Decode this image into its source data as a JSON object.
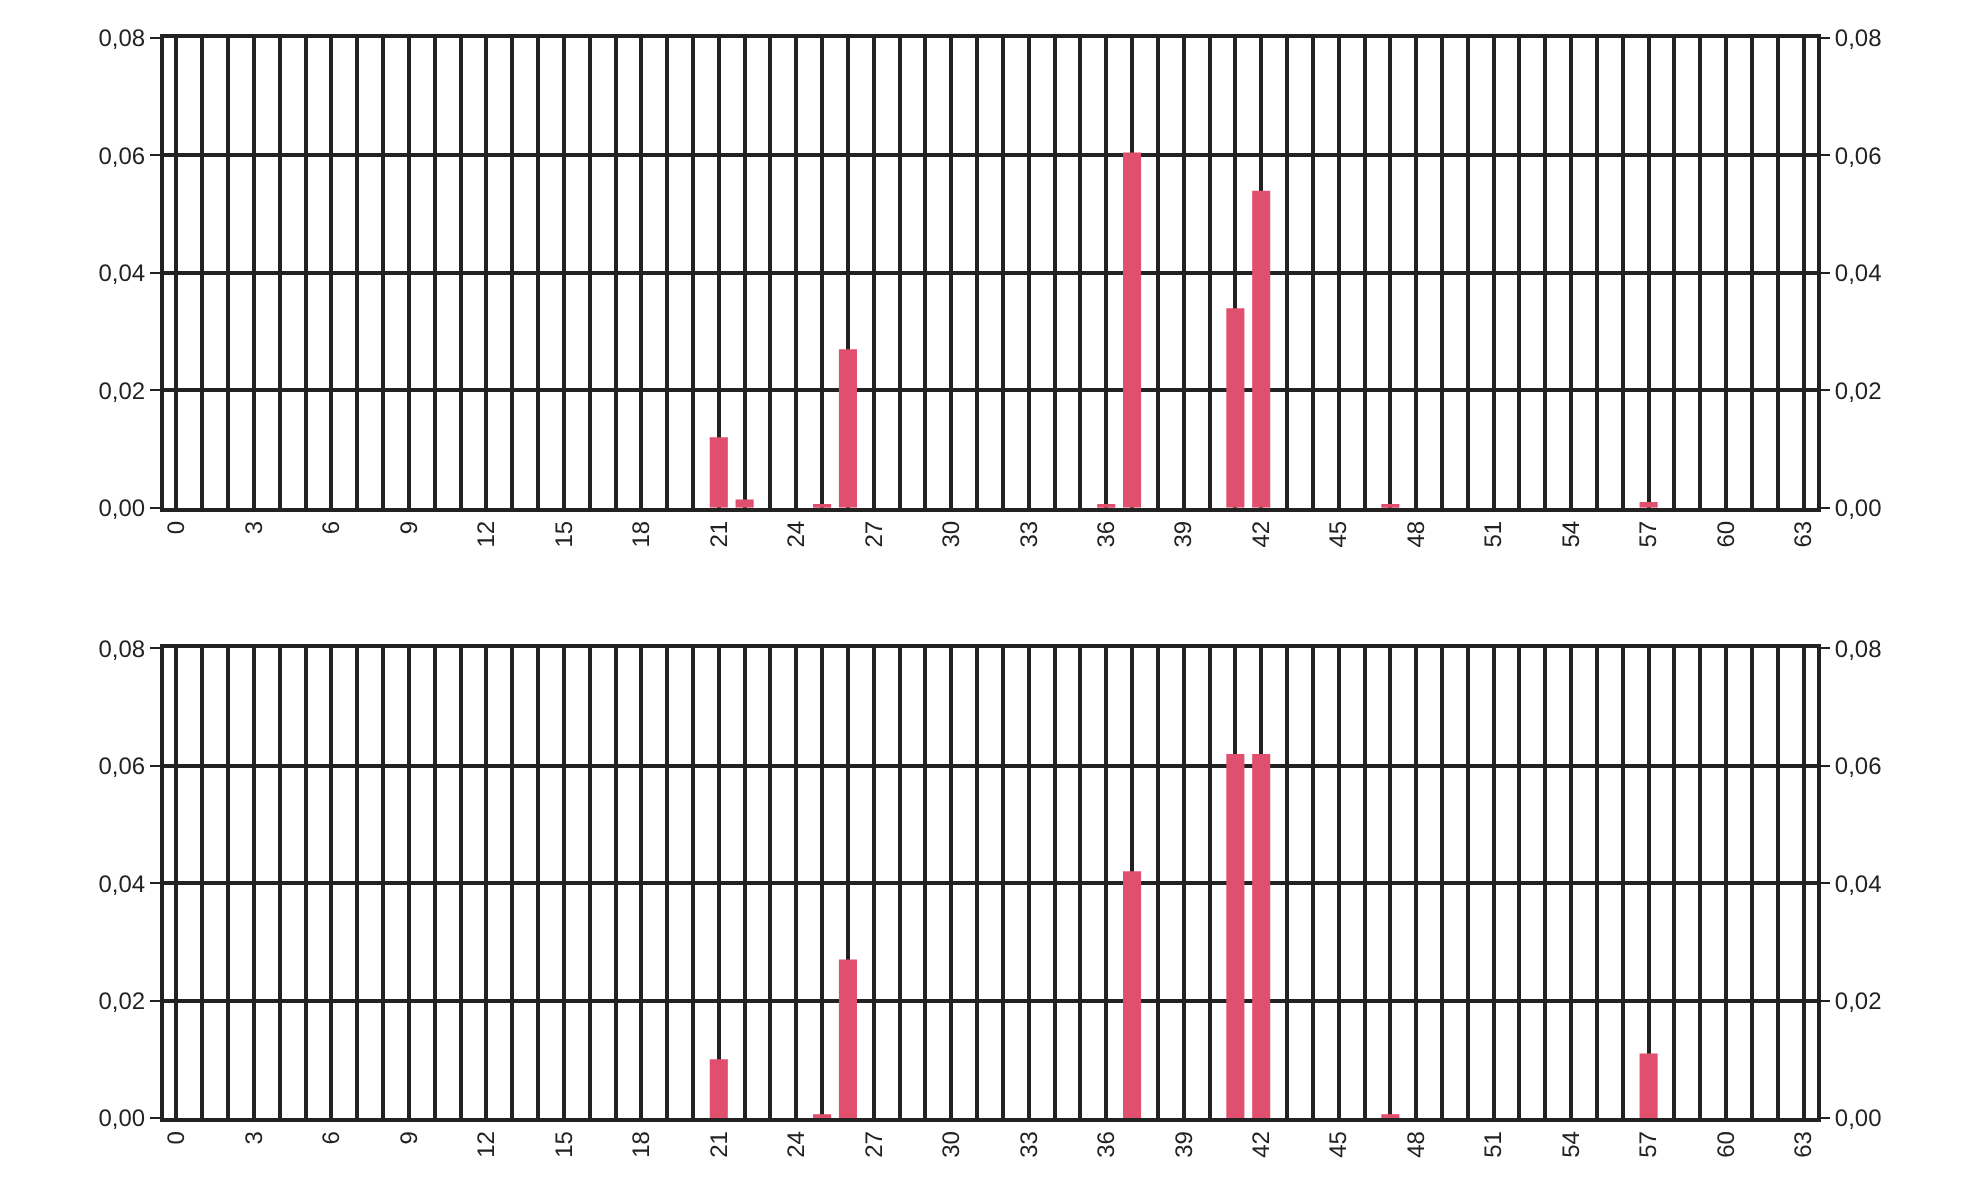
{
  "chart_data": [
    {
      "type": "bar",
      "categories": [
        "0",
        null,
        null,
        "3",
        null,
        null,
        "6",
        null,
        null,
        "9",
        null,
        null,
        "12",
        null,
        null,
        "15",
        null,
        null,
        "18",
        null,
        null,
        "21",
        null,
        null,
        "24",
        null,
        null,
        "27",
        null,
        null,
        "30",
        null,
        null,
        "33",
        null,
        null,
        "36",
        null,
        null,
        "39",
        null,
        null,
        "42",
        null,
        null,
        "45",
        null,
        null,
        "48",
        null,
        null,
        "51",
        null,
        null,
        "54",
        null,
        null,
        "57",
        null,
        null,
        "60",
        null,
        null,
        "63"
      ],
      "series": [
        {
          "color": "#e0506e",
          "values": [
            0,
            0,
            0,
            0,
            0,
            0,
            0,
            0,
            0,
            0,
            0,
            0,
            0,
            0,
            0,
            0,
            0,
            0,
            0,
            0,
            0,
            0.012,
            0.0014,
            0,
            0,
            0.0005,
            0.027,
            0,
            0,
            0,
            0,
            0,
            0,
            0,
            0,
            0,
            0.0005,
            0.0605,
            0,
            0,
            0,
            0.034,
            0.054,
            0,
            0,
            0,
            0,
            0.0005,
            0,
            0,
            0,
            0,
            0,
            0,
            0,
            0,
            0,
            0.001,
            0,
            0,
            0,
            0,
            0,
            0
          ]
        }
      ],
      "ylim": [
        0,
        0.08
      ],
      "yticks": [
        {
          "value": 0,
          "label": "0,00"
        },
        {
          "value": 0.02,
          "label": "0,02"
        },
        {
          "value": 0.04,
          "label": "0,04"
        },
        {
          "value": 0.06,
          "label": "0,06"
        },
        {
          "value": 0.08,
          "label": "0,08"
        }
      ],
      "y2lim": [
        0,
        0.08
      ],
      "y2ticks": [
        {
          "value": 0,
          "label": "0,00"
        },
        {
          "value": 0.02,
          "label": "0,02"
        },
        {
          "value": 0.04,
          "label": "0,04"
        },
        {
          "value": 0.06,
          "label": "0,06"
        },
        {
          "value": 0.08,
          "label": "0,08"
        }
      ],
      "grid": true
    },
    {
      "type": "bar",
      "categories": [
        "0",
        null,
        null,
        "3",
        null,
        null,
        "6",
        null,
        null,
        "9",
        null,
        null,
        "12",
        null,
        null,
        "15",
        null,
        null,
        "18",
        null,
        null,
        "21",
        null,
        null,
        "24",
        null,
        null,
        "27",
        null,
        null,
        "30",
        null,
        null,
        "33",
        null,
        null,
        "36",
        null,
        null,
        "39",
        null,
        null,
        "42",
        null,
        null,
        "45",
        null,
        null,
        "48",
        null,
        null,
        "51",
        null,
        null,
        "54",
        null,
        null,
        "57",
        null,
        null,
        "60",
        null,
        null,
        "63"
      ],
      "series": [
        {
          "color": "#e0506e",
          "values": [
            0,
            0,
            0,
            0,
            0,
            0,
            0,
            0,
            0,
            0,
            0,
            0,
            0,
            0,
            0,
            0,
            0,
            0,
            0,
            0,
            0,
            0.01,
            0,
            0,
            0,
            0.0005,
            0.027,
            0,
            0,
            0,
            0,
            0,
            0,
            0,
            0,
            0,
            0,
            0.042,
            0,
            0,
            0,
            0.062,
            0.062,
            0,
            0,
            0,
            0,
            0.0005,
            0,
            0,
            0,
            0,
            0,
            0,
            0,
            0,
            0,
            0.011,
            0,
            0,
            0,
            0,
            0,
            0
          ]
        }
      ],
      "ylim": [
        0,
        0.08
      ],
      "yticks": [
        {
          "value": 0,
          "label": "0,00"
        },
        {
          "value": 0.02,
          "label": "0,02"
        },
        {
          "value": 0.04,
          "label": "0,04"
        },
        {
          "value": 0.06,
          "label": "0,06"
        },
        {
          "value": 0.08,
          "label": "0,08"
        }
      ],
      "y2lim": [
        0,
        0.08
      ],
      "y2ticks": [
        {
          "value": 0,
          "label": "0,00"
        },
        {
          "value": 0.02,
          "label": "0,02"
        },
        {
          "value": 0.04,
          "label": "0,04"
        },
        {
          "value": 0.06,
          "label": "0,06"
        },
        {
          "value": 0.08,
          "label": "0,08"
        }
      ],
      "grid": true
    }
  ]
}
